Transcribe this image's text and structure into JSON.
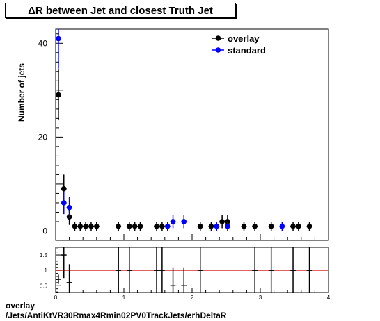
{
  "title": "ΔR between Jet and closest Truth Jet",
  "footer": {
    "line1": "overlay",
    "line2": "/Jets/AntiKtVR30Rmax4Rmin02PV0TrackJets/erhDeltaR"
  },
  "chart_data": [
    {
      "type": "scatter",
      "ylabel": "Number of jets",
      "xlim": [
        0,
        4
      ],
      "ylim": [
        -2,
        43
      ],
      "yticks": [
        "0",
        "20",
        "40"
      ],
      "legend_position": "top-right",
      "series": [
        {
          "name": "overlay",
          "color": "#000000",
          "points": [
            {
              "x": 0.04,
              "y": 29,
              "err": 5.4
            },
            {
              "x": 0.12,
              "y": 9,
              "err": 3
            },
            {
              "x": 0.2,
              "y": 3,
              "err": 1.7
            },
            {
              "x": 0.28,
              "y": 1,
              "err": 1
            },
            {
              "x": 0.36,
              "y": 1,
              "err": 1
            },
            {
              "x": 0.44,
              "y": 1,
              "err": 1
            },
            {
              "x": 0.52,
              "y": 1,
              "err": 1
            },
            {
              "x": 0.6,
              "y": 1,
              "err": 1
            },
            {
              "x": 0.92,
              "y": 1,
              "err": 1
            },
            {
              "x": 1.08,
              "y": 1,
              "err": 1
            },
            {
              "x": 1.16,
              "y": 1,
              "err": 1
            },
            {
              "x": 1.24,
              "y": 1,
              "err": 1
            },
            {
              "x": 1.48,
              "y": 1,
              "err": 1
            },
            {
              "x": 1.56,
              "y": 1,
              "err": 1
            },
            {
              "x": 2.12,
              "y": 1,
              "err": 1
            },
            {
              "x": 2.28,
              "y": 1,
              "err": 1
            },
            {
              "x": 2.44,
              "y": 2,
              "err": 1.4
            },
            {
              "x": 2.52,
              "y": 2,
              "err": 1.4
            },
            {
              "x": 2.76,
              "y": 1,
              "err": 1
            },
            {
              "x": 2.92,
              "y": 1,
              "err": 1
            },
            {
              "x": 3.16,
              "y": 1,
              "err": 1
            },
            {
              "x": 3.48,
              "y": 1,
              "err": 1
            },
            {
              "x": 3.56,
              "y": 1,
              "err": 1
            },
            {
              "x": 3.72,
              "y": 1,
              "err": 1
            }
          ]
        },
        {
          "name": "standard",
          "color": "#0000ff",
          "points": [
            {
              "x": 0.04,
              "y": 41,
              "err": 6.4
            },
            {
              "x": 0.12,
              "y": 6,
              "err": 2.4
            },
            {
              "x": 0.2,
              "y": 5,
              "err": 2.2
            },
            {
              "x": 1.64,
              "y": 1,
              "err": 1
            },
            {
              "x": 1.72,
              "y": 2,
              "err": 1.4
            },
            {
              "x": 1.88,
              "y": 2,
              "err": 1.4
            },
            {
              "x": 2.36,
              "y": 1,
              "err": 1
            },
            {
              "x": 2.52,
              "y": 1,
              "err": 1
            },
            {
              "x": 3.32,
              "y": 1,
              "err": 1
            }
          ]
        }
      ]
    },
    {
      "type": "scatter",
      "xlim": [
        0,
        4
      ],
      "ylim": [
        0.28,
        1.75
      ],
      "xticks": [
        "0",
        "1",
        "2",
        "3",
        "4"
      ],
      "yticks": [
        "0.5",
        "1",
        "1.5"
      ],
      "reference_line": 1,
      "reference_color": "#cc0000",
      "points": [
        {
          "x": 0.04,
          "y": 0.71,
          "err": 0.15
        },
        {
          "x": 0.12,
          "y": 1.5,
          "err": 0.75
        },
        {
          "x": 0.2,
          "y": 0.6,
          "err": 0.6
        },
        {
          "x": 0.92,
          "y": 1,
          "err": 1.4
        },
        {
          "x": 1.08,
          "y": 1,
          "err": 1.4
        },
        {
          "x": 1.48,
          "y": 1,
          "err": 1.4
        },
        {
          "x": 1.56,
          "y": 1,
          "err": 1.4
        },
        {
          "x": 1.72,
          "y": 0.5,
          "err": 0.6
        },
        {
          "x": 1.88,
          "y": 0.5,
          "err": 0.6
        },
        {
          "x": 2.12,
          "y": 1,
          "err": 1.4
        },
        {
          "x": 2.92,
          "y": 1,
          "err": 1.4
        },
        {
          "x": 3.16,
          "y": 1,
          "err": 1.4
        },
        {
          "x": 3.48,
          "y": 1,
          "err": 1.4
        },
        {
          "x": 3.72,
          "y": 1,
          "err": 1.4
        }
      ]
    }
  ]
}
